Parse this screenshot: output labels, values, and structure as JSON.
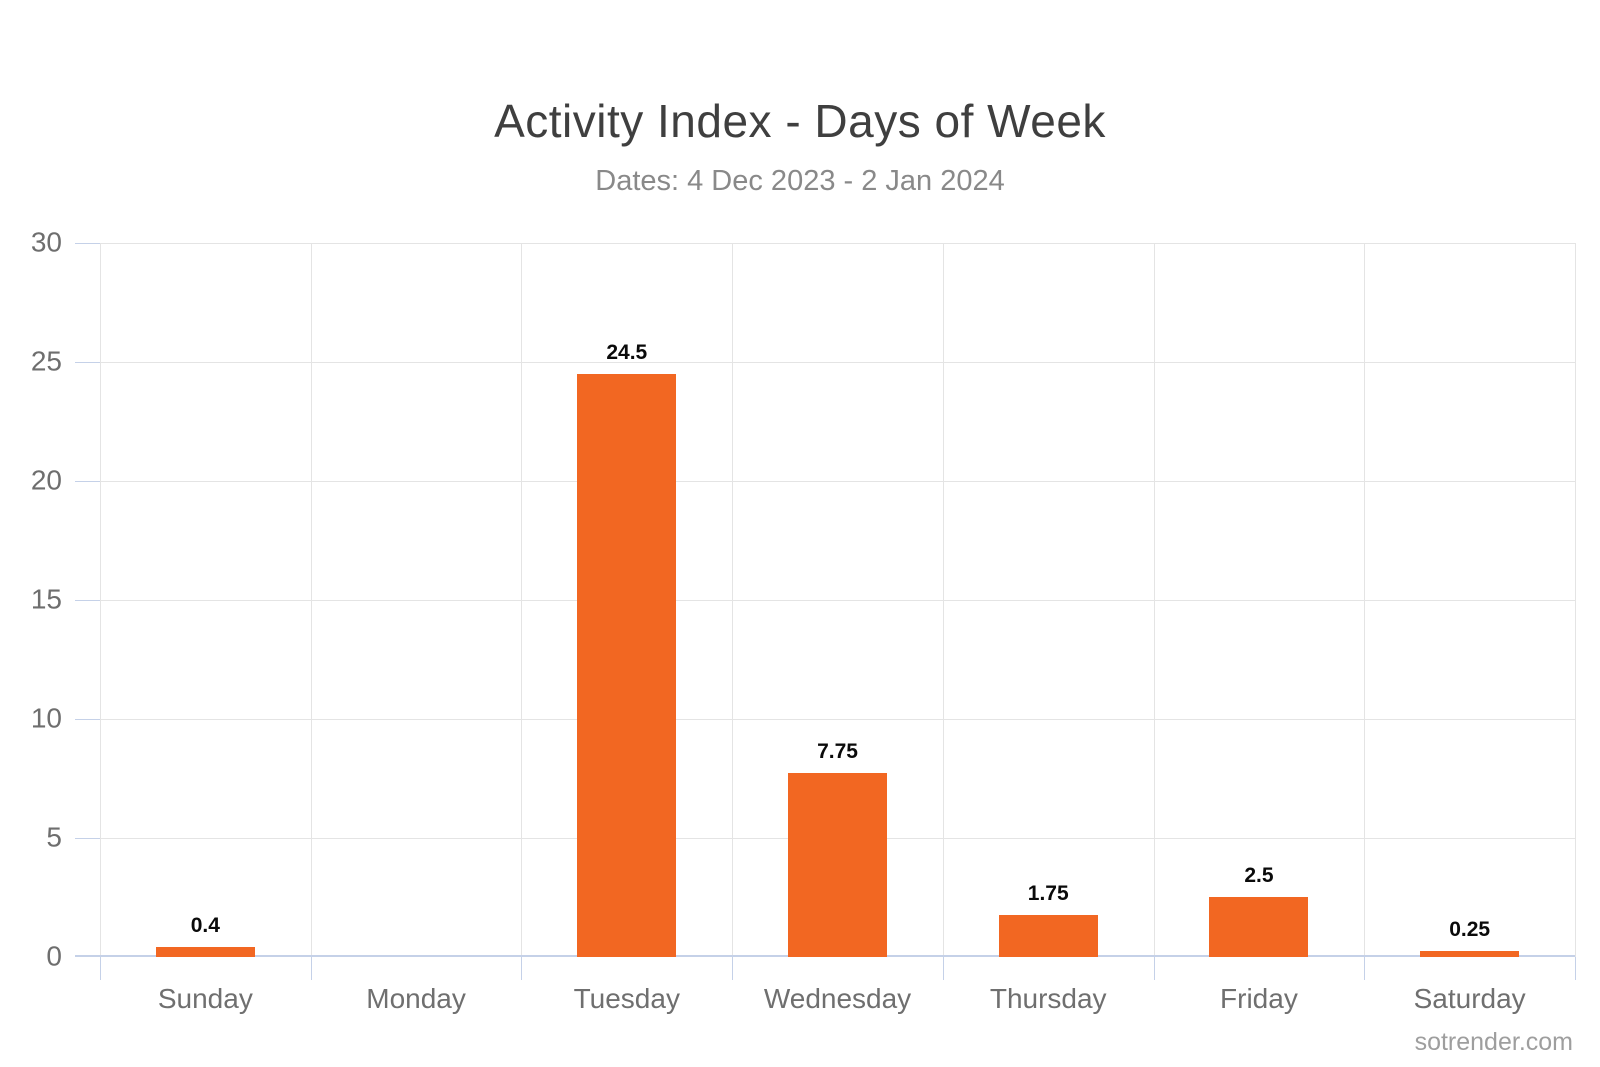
{
  "header": {
    "title": "Activity Index - Days of Week",
    "subtitle": "Dates: 4 Dec 2023 - 2 Jan 2024"
  },
  "footer": {
    "credit": "sotrender.com"
  },
  "colors": {
    "bar": "#f26722",
    "grid": "#e4e4e4",
    "axis": "#c5d1e8",
    "title": "#3f3f3f",
    "subtitle": "#898989",
    "tick_label": "#6e6e6e",
    "value_label": "#0a0a0a",
    "credit": "#9e9e9e"
  },
  "chart_data": {
    "type": "bar",
    "title": "Activity Index - Days of Week",
    "subtitle": "Dates: 4 Dec 2023 - 2 Jan 2024",
    "categories": [
      "Sunday",
      "Monday",
      "Tuesday",
      "Wednesday",
      "Thursday",
      "Friday",
      "Saturday"
    ],
    "values": [
      0.4,
      0,
      24.5,
      7.75,
      1.75,
      2.5,
      0.25
    ],
    "value_labels": [
      "0.4",
      "",
      "24.5",
      "7.75",
      "1.75",
      "2.5",
      "0.25"
    ],
    "xlabel": "",
    "ylabel": "",
    "ylim": [
      0,
      30
    ],
    "yticks": [
      0,
      5,
      10,
      15,
      20,
      25,
      30
    ],
    "grid": true,
    "legend": "none",
    "bar_color": "#f26722",
    "bar_width_fraction": 0.47
  }
}
